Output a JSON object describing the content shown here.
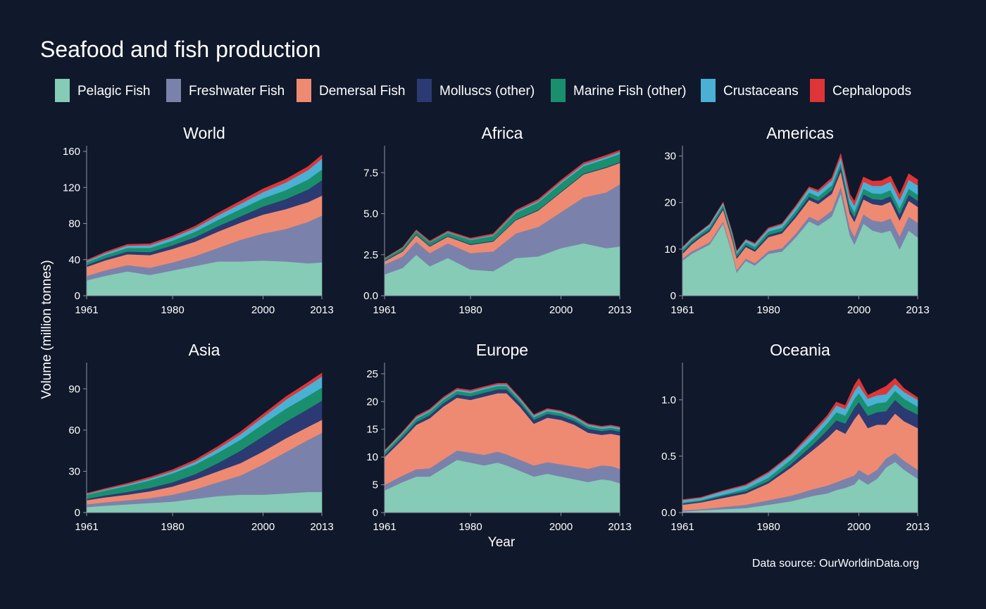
{
  "title": "Seafood and fish production",
  "ylabel": "Volume (million tonnes)",
  "xlabel": "Year",
  "caption": "Data source: OurWorldinData.org",
  "chart_data": {
    "type": "area",
    "stacked": true,
    "legend_position": "top",
    "grid": false,
    "x_ticks": [
      1961,
      1980,
      2000,
      2013
    ],
    "series": [
      {
        "key": "pelagic",
        "name": "Pelagic Fish",
        "color": "#85cbb6"
      },
      {
        "key": "freshwater",
        "name": "Freshwater Fish",
        "color": "#7a82ab"
      },
      {
        "key": "demersal",
        "name": "Demersal Fish",
        "color": "#ef8a72"
      },
      {
        "key": "molluscs",
        "name": "Molluscs (other)",
        "color": "#2b3a72"
      },
      {
        "key": "marine",
        "name": "Marine Fish (other)",
        "color": "#1a8f6e"
      },
      {
        "key": "crustaceans",
        "name": "Crustaceans",
        "color": "#4ab0d4"
      },
      {
        "key": "cephalopods",
        "name": "Cephalopods",
        "color": "#df3538"
      }
    ],
    "panels": [
      {
        "title": "World",
        "ylim": [
          0,
          160
        ],
        "yticks": [
          0,
          40,
          80,
          120,
          160
        ],
        "ytick_labels": [
          "0",
          "40",
          "80",
          "120",
          "160"
        ],
        "data": {
          "years": [
            1961,
            1965,
            1970,
            1975,
            1980,
            1985,
            1990,
            1995,
            2000,
            2005,
            2010,
            2013
          ],
          "pelagic": [
            17,
            22,
            27,
            23,
            28,
            33,
            38,
            38,
            39,
            38,
            36,
            37
          ],
          "freshwater": [
            5,
            6,
            7,
            8,
            9,
            11,
            15,
            24,
            30,
            36,
            46,
            52
          ],
          "demersal": [
            10,
            11,
            12,
            14,
            15,
            16,
            18,
            19,
            21,
            22,
            22,
            22
          ],
          "molluscs": [
            2,
            2.5,
            3,
            3.5,
            4,
            5,
            6,
            7,
            9,
            11,
            14,
            17
          ],
          "marine": [
            3,
            3.5,
            4,
            4.5,
            5,
            6,
            7,
            8,
            9,
            10,
            11,
            12
          ],
          "crustaceans": [
            1.5,
            2,
            2.5,
            3,
            3.5,
            4,
            5,
            6,
            7,
            8.5,
            10.5,
            12
          ],
          "cephalopods": [
            1,
            1.2,
            1.4,
            1.6,
            1.8,
            2.2,
            2.6,
            3,
            3.4,
            3.6,
            3.8,
            4
          ]
        }
      },
      {
        "title": "Africa",
        "ylim": [
          0,
          8.8
        ],
        "yticks": [
          0,
          2.5,
          5,
          7.5
        ],
        "ytick_labels": [
          "0.0",
          "2.5",
          "5.0",
          "7.5"
        ],
        "data": {
          "years": [
            1961,
            1965,
            1968,
            1971,
            1975,
            1980,
            1985,
            1990,
            1995,
            2000,
            2005,
            2010,
            2013
          ],
          "pelagic": [
            1.3,
            1.7,
            2.5,
            1.8,
            2.3,
            1.6,
            1.5,
            2.3,
            2.4,
            2.9,
            3.2,
            2.9,
            3
          ],
          "freshwater": [
            0.6,
            0.7,
            0.8,
            0.8,
            0.9,
            1,
            1.2,
            1.5,
            1.8,
            2.2,
            2.8,
            3.4,
            3.8
          ],
          "demersal": [
            0.2,
            0.3,
            0.4,
            0.4,
            0.4,
            0.5,
            0.6,
            0.8,
            1,
            1.2,
            1.4,
            1.5,
            1.3
          ],
          "molluscs": [
            0.05,
            0.05,
            0.05,
            0.05,
            0.05,
            0.05,
            0.05,
            0.05,
            0.05,
            0.05,
            0.05,
            0.05,
            0.05
          ],
          "marine": [
            0.1,
            0.15,
            0.2,
            0.2,
            0.2,
            0.25,
            0.3,
            0.4,
            0.45,
            0.5,
            0.45,
            0.5,
            0.5
          ],
          "crustaceans": [
            0.02,
            0.03,
            0.03,
            0.04,
            0.05,
            0.05,
            0.06,
            0.08,
            0.09,
            0.1,
            0.11,
            0.12,
            0.12
          ],
          "cephalopods": [
            0.02,
            0.03,
            0.04,
            0.05,
            0.05,
            0.06,
            0.07,
            0.08,
            0.09,
            0.1,
            0.1,
            0.1,
            0.1
          ]
        }
      },
      {
        "title": "Americas",
        "ylim": [
          0,
          31
        ],
        "yticks": [
          0,
          10,
          20,
          30
        ],
        "ytick_labels": [
          "0",
          "10",
          "20",
          "30"
        ],
        "data": {
          "years": [
            1961,
            1963,
            1965,
            1967,
            1970,
            1972,
            1973,
            1975,
            1977,
            1980,
            1983,
            1986,
            1989,
            1991,
            1994,
            1996,
            1998,
            1999,
            2001,
            2003,
            2005,
            2007,
            2009,
            2011,
            2013
          ],
          "pelagic": [
            7.5,
            9,
            10,
            11,
            15.5,
            9,
            5,
            7.5,
            6.5,
            9,
            9.5,
            12.5,
            16,
            15,
            17,
            22,
            13,
            11,
            15.5,
            14,
            13.5,
            14,
            10,
            14,
            12.5
          ],
          "freshwater": [
            0.5,
            0.5,
            0.5,
            0.5,
            0.5,
            0.5,
            0.5,
            0.5,
            0.5,
            0.6,
            0.7,
            0.8,
            1,
            1.1,
            1.3,
            1.5,
            1.6,
            1.7,
            2,
            2.2,
            2.4,
            2.6,
            2.8,
            3,
            3.2
          ],
          "demersal": [
            1,
            1.5,
            2,
            2.3,
            2.5,
            2.5,
            2.5,
            2.5,
            2.5,
            3,
            3.2,
            3.5,
            3.6,
            3.6,
            3.6,
            3.2,
            3,
            3.2,
            3.2,
            3.5,
            3.5,
            3.6,
            3.4,
            3.4,
            3.4
          ],
          "molluscs": [
            0.4,
            0.4,
            0.4,
            0.4,
            0.4,
            0.4,
            0.4,
            0.4,
            0.4,
            0.5,
            0.5,
            0.6,
            0.7,
            0.7,
            0.8,
            0.9,
            1,
            1,
            1.1,
            1.1,
            1.2,
            1.2,
            1.3,
            1.3,
            1.3
          ],
          "marine": [
            0.5,
            0.5,
            0.5,
            0.6,
            0.6,
            0.6,
            0.6,
            0.6,
            0.6,
            0.7,
            0.7,
            0.8,
            0.9,
            0.9,
            1,
            1,
            1.1,
            1.1,
            1.2,
            1.2,
            1.3,
            1.3,
            1.3,
            1.3,
            1.3
          ],
          "crustaceans": [
            0.4,
            0.4,
            0.4,
            0.5,
            0.5,
            0.5,
            0.5,
            0.5,
            0.6,
            0.6,
            0.7,
            0.8,
            0.9,
            1,
            1.1,
            1.2,
            1.3,
            1.4,
            1.5,
            1.6,
            1.7,
            1.8,
            1.8,
            1.9,
            2
          ],
          "cephalopods": [
            0.1,
            0.1,
            0.1,
            0.1,
            0.1,
            0.1,
            0.1,
            0.1,
            0.2,
            0.2,
            0.2,
            0.3,
            0.3,
            0.4,
            0.5,
            0.7,
            0.8,
            0.9,
            1,
            1,
            1.1,
            1.2,
            1.1,
            1.3,
            1.2
          ]
        }
      },
      {
        "title": "Asia",
        "ylim": [
          0,
          105
        ],
        "yticks": [
          0,
          30,
          60,
          90
        ],
        "ytick_labels": [
          "0",
          "30",
          "60",
          "90"
        ],
        "data": {
          "years": [
            1961,
            1965,
            1970,
            1975,
            1980,
            1985,
            1990,
            1995,
            2000,
            2005,
            2010,
            2013
          ],
          "pelagic": [
            4,
            5,
            6,
            7,
            8,
            10,
            12,
            13,
            13,
            14,
            15,
            15
          ],
          "freshwater": [
            2,
            2.5,
            3,
            3.5,
            5,
            7,
            10,
            14,
            22,
            30,
            38,
            43
          ],
          "demersal": [
            3,
            3.5,
            4,
            5,
            6,
            7,
            8,
            9,
            9.5,
            10,
            9.5,
            9.5
          ],
          "molluscs": [
            1,
            1.5,
            2,
            2.5,
            3,
            4,
            6,
            9,
            11,
            12,
            13,
            14
          ],
          "marine": [
            3,
            3.5,
            4.5,
            5.5,
            6.5,
            7,
            7.5,
            8,
            9,
            9.5,
            9.5,
            9.5
          ],
          "crustaceans": [
            0.5,
            0.8,
            1,
            1.3,
            1.5,
            2,
            3,
            4,
            5,
            6.5,
            7.5,
            8
          ],
          "cephalopods": [
            0.5,
            0.6,
            0.8,
            1,
            1.2,
            1.4,
            1.6,
            1.8,
            2,
            2.2,
            2.3,
            2.5
          ]
        }
      },
      {
        "title": "Europe",
        "ylim": [
          0,
          26
        ],
        "yticks": [
          0,
          5,
          10,
          15,
          20,
          25
        ],
        "ytick_labels": [
          "0",
          "5",
          "10",
          "15",
          "20",
          "25"
        ],
        "data": {
          "years": [
            1961,
            1965,
            1968,
            1971,
            1974,
            1977,
            1980,
            1983,
            1986,
            1988,
            1991,
            1994,
            1997,
            2000,
            2003,
            2006,
            2009,
            2011,
            2013
          ],
          "pelagic": [
            4,
            5.5,
            6.5,
            6.5,
            8,
            9.5,
            9,
            8.5,
            9,
            8.5,
            7.5,
            6.5,
            7,
            6.5,
            6,
            5.5,
            6,
            5.8,
            5.3
          ],
          "freshwater": [
            1,
            1.2,
            1.3,
            1.5,
            1.6,
            1.7,
            1.8,
            1.9,
            2,
            2,
            2,
            2,
            2.1,
            2.2,
            2.3,
            2.4,
            2.5,
            2.6,
            2.6
          ],
          "demersal": [
            5,
            6.5,
            8,
            9,
            9.5,
            9.5,
            9.5,
            10.5,
            10.5,
            11,
            9.5,
            7.5,
            8,
            8,
            7.5,
            6.5,
            5.5,
            5.8,
            6
          ],
          "molluscs": [
            0.4,
            0.45,
            0.5,
            0.55,
            0.6,
            0.6,
            0.65,
            0.7,
            0.7,
            0.7,
            0.7,
            0.7,
            0.7,
            0.7,
            0.7,
            0.7,
            0.7,
            0.7,
            0.7
          ],
          "marine": [
            0.5,
            0.55,
            0.6,
            0.6,
            0.6,
            0.6,
            0.6,
            0.6,
            0.6,
            0.6,
            0.5,
            0.5,
            0.5,
            0.5,
            0.5,
            0.45,
            0.4,
            0.4,
            0.4
          ],
          "crustaceans": [
            0.2,
            0.25,
            0.3,
            0.3,
            0.3,
            0.3,
            0.3,
            0.3,
            0.3,
            0.3,
            0.3,
            0.3,
            0.3,
            0.3,
            0.3,
            0.3,
            0.3,
            0.3,
            0.3
          ],
          "cephalopods": [
            0.1,
            0.15,
            0.2,
            0.2,
            0.2,
            0.2,
            0.2,
            0.2,
            0.2,
            0.2,
            0.15,
            0.15,
            0.15,
            0.15,
            0.15,
            0.15,
            0.15,
            0.15,
            0.15
          ]
        }
      },
      {
        "title": "Oceania",
        "ylim": [
          0,
          1.28
        ],
        "yticks": [
          0,
          0.5,
          1
        ],
        "ytick_labels": [
          "0.0",
          "0.5",
          "1.0"
        ],
        "data": {
          "years": [
            1961,
            1965,
            1970,
            1975,
            1980,
            1985,
            1990,
            1993,
            1995,
            1997,
            1999,
            2000,
            2002,
            2004,
            2006,
            2008,
            2010,
            2013
          ],
          "pelagic": [
            0.01,
            0.02,
            0.03,
            0.04,
            0.07,
            0.1,
            0.15,
            0.17,
            0.2,
            0.22,
            0.25,
            0.3,
            0.25,
            0.3,
            0.4,
            0.45,
            0.38,
            0.3
          ],
          "freshwater": [
            0.01,
            0.01,
            0.02,
            0.03,
            0.04,
            0.05,
            0.06,
            0.07,
            0.07,
            0.08,
            0.08,
            0.08,
            0.08,
            0.08,
            0.08,
            0.08,
            0.08,
            0.08
          ],
          "demersal": [
            0.05,
            0.06,
            0.08,
            0.1,
            0.15,
            0.25,
            0.35,
            0.42,
            0.47,
            0.4,
            0.5,
            0.5,
            0.42,
            0.4,
            0.3,
            0.35,
            0.35,
            0.37
          ],
          "molluscs": [
            0.01,
            0.01,
            0.02,
            0.02,
            0.02,
            0.03,
            0.05,
            0.07,
            0.08,
            0.09,
            0.1,
            0.1,
            0.11,
            0.11,
            0.12,
            0.12,
            0.12,
            0.12
          ],
          "marine": [
            0.01,
            0.01,
            0.01,
            0.02,
            0.03,
            0.04,
            0.05,
            0.06,
            0.07,
            0.07,
            0.08,
            0.08,
            0.08,
            0.08,
            0.08,
            0.08,
            0.08,
            0.07
          ],
          "crustaceans": [
            0.02,
            0.02,
            0.03,
            0.03,
            0.04,
            0.04,
            0.05,
            0.05,
            0.06,
            0.06,
            0.07,
            0.07,
            0.07,
            0.07,
            0.07,
            0.06,
            0.06,
            0.06
          ],
          "cephalopods": [
            0.005,
            0.005,
            0.005,
            0.008,
            0.01,
            0.01,
            0.02,
            0.02,
            0.03,
            0.03,
            0.05,
            0.06,
            0.03,
            0.04,
            0.07,
            0.05,
            0.03,
            0.02
          ]
        }
      }
    ]
  }
}
